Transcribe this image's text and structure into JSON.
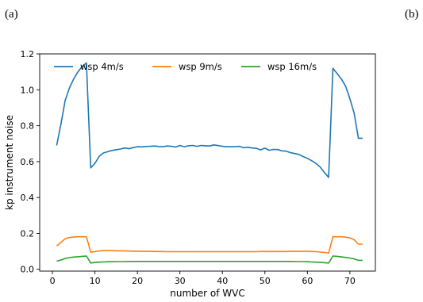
{
  "panel_labels": {
    "left": "(a)",
    "right": "(b)"
  },
  "chart_data": {
    "type": "line",
    "xlabel": "number of WVC",
    "ylabel": "kp instrument noise",
    "xlim": [
      -3,
      76
    ],
    "ylim": [
      -0.01,
      1.2
    ],
    "xticks": [
      0,
      10,
      20,
      30,
      40,
      50,
      60,
      70
    ],
    "yticks": [
      0.0,
      0.2,
      0.4,
      0.6,
      0.8,
      1.0,
      1.2
    ],
    "xtick_labels": [
      "0",
      "10",
      "20",
      "30",
      "40",
      "50",
      "60",
      "70"
    ],
    "ytick_labels": [
      "0.0",
      "0.2",
      "0.4",
      "0.6",
      "0.8",
      "1.0",
      "1.2"
    ],
    "grid": false,
    "legend": {
      "placement": "top",
      "orientation": "horizontal"
    },
    "x": [
      1,
      2,
      3,
      4,
      5,
      6,
      7,
      8,
      9,
      10,
      11,
      12,
      13,
      14,
      15,
      16,
      17,
      18,
      19,
      20,
      21,
      22,
      23,
      24,
      25,
      26,
      27,
      28,
      29,
      30,
      31,
      32,
      33,
      34,
      35,
      36,
      37,
      38,
      39,
      40,
      41,
      42,
      43,
      44,
      45,
      46,
      47,
      48,
      49,
      50,
      51,
      52,
      53,
      54,
      55,
      56,
      57,
      58,
      59,
      60,
      61,
      62,
      63,
      64,
      65,
      66,
      67,
      68,
      69,
      70,
      71,
      72,
      73
    ],
    "series": [
      {
        "name": "wsp 4m/s",
        "color": "#1f77b4",
        "values": [
          0.69,
          0.81,
          0.94,
          1.01,
          1.06,
          1.1,
          1.13,
          1.15,
          0.565,
          0.59,
          0.63,
          0.648,
          0.655,
          0.662,
          0.666,
          0.67,
          0.676,
          0.672,
          0.678,
          0.683,
          0.682,
          0.684,
          0.685,
          0.687,
          0.684,
          0.683,
          0.687,
          0.685,
          0.681,
          0.69,
          0.683,
          0.688,
          0.69,
          0.685,
          0.69,
          0.688,
          0.687,
          0.693,
          0.689,
          0.685,
          0.683,
          0.683,
          0.683,
          0.685,
          0.677,
          0.68,
          0.676,
          0.674,
          0.665,
          0.675,
          0.663,
          0.668,
          0.667,
          0.66,
          0.658,
          0.65,
          0.645,
          0.64,
          0.628,
          0.618,
          0.605,
          0.59,
          0.57,
          0.54,
          0.512,
          1.12,
          1.09,
          1.06,
          1.02,
          0.95,
          0.87,
          0.73,
          0.73
        ]
      },
      {
        "name": "wsp 9m/s",
        "color": "#ff7f0e",
        "values": [
          0.13,
          0.15,
          0.17,
          0.177,
          0.18,
          0.181,
          0.181,
          0.181,
          0.095,
          0.098,
          0.102,
          0.104,
          0.104,
          0.104,
          0.103,
          0.103,
          0.102,
          0.102,
          0.101,
          0.101,
          0.1,
          0.1,
          0.1,
          0.099,
          0.099,
          0.099,
          0.098,
          0.098,
          0.098,
          0.098,
          0.098,
          0.098,
          0.098,
          0.098,
          0.098,
          0.098,
          0.098,
          0.098,
          0.098,
          0.098,
          0.098,
          0.098,
          0.098,
          0.098,
          0.098,
          0.098,
          0.098,
          0.098,
          0.099,
          0.099,
          0.099,
          0.099,
          0.099,
          0.099,
          0.099,
          0.1,
          0.1,
          0.1,
          0.1,
          0.1,
          0.099,
          0.098,
          0.096,
          0.094,
          0.09,
          0.181,
          0.181,
          0.181,
          0.179,
          0.175,
          0.165,
          0.14,
          0.14
        ]
      },
      {
        "name": "wsp 16m/s",
        "color": "#2ca02c",
        "values": [
          0.045,
          0.052,
          0.06,
          0.065,
          0.068,
          0.07,
          0.072,
          0.074,
          0.035,
          0.038,
          0.04,
          0.041,
          0.042,
          0.042,
          0.043,
          0.043,
          0.043,
          0.044,
          0.044,
          0.044,
          0.044,
          0.044,
          0.044,
          0.044,
          0.044,
          0.044,
          0.044,
          0.044,
          0.044,
          0.044,
          0.044,
          0.044,
          0.044,
          0.044,
          0.044,
          0.044,
          0.044,
          0.044,
          0.044,
          0.044,
          0.044,
          0.044,
          0.044,
          0.044,
          0.044,
          0.044,
          0.044,
          0.044,
          0.044,
          0.044,
          0.044,
          0.044,
          0.044,
          0.044,
          0.044,
          0.044,
          0.043,
          0.043,
          0.043,
          0.042,
          0.041,
          0.04,
          0.039,
          0.037,
          0.035,
          0.074,
          0.072,
          0.069,
          0.066,
          0.063,
          0.058,
          0.05,
          0.05
        ]
      }
    ]
  }
}
